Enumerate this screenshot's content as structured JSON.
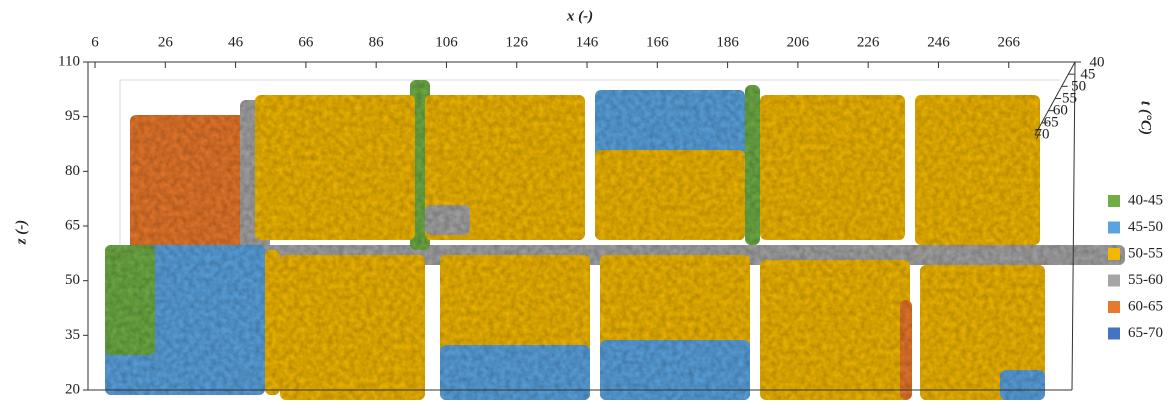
{
  "chart_data": {
    "type": "surface",
    "x_label": "x (-)",
    "y_label": "z (-)",
    "z_label": "t (°C)",
    "xlim": [
      4,
      284
    ],
    "xticks": [
      6,
      26,
      46,
      66,
      86,
      106,
      126,
      146,
      166,
      186,
      206,
      226,
      246,
      266
    ],
    "ylim": [
      20,
      110
    ],
    "yticks": [
      20,
      35,
      50,
      65,
      80,
      95,
      110
    ],
    "zlim": [
      40,
      70
    ],
    "zticks": [
      40,
      45,
      50,
      55,
      60,
      65,
      70
    ],
    "legend": {
      "position": "right",
      "entries": [
        {
          "name": "40-45",
          "color": "#70ad47"
        },
        {
          "name": "45-50",
          "color": "#5ba3df"
        },
        {
          "name": "50-55",
          "color": "#f2b800"
        },
        {
          "name": "55-60",
          "color": "#a5a5a5"
        },
        {
          "name": "60-65",
          "color": "#e8782f"
        },
        {
          "name": "65-70",
          "color": "#4472c4"
        }
      ]
    }
  }
}
